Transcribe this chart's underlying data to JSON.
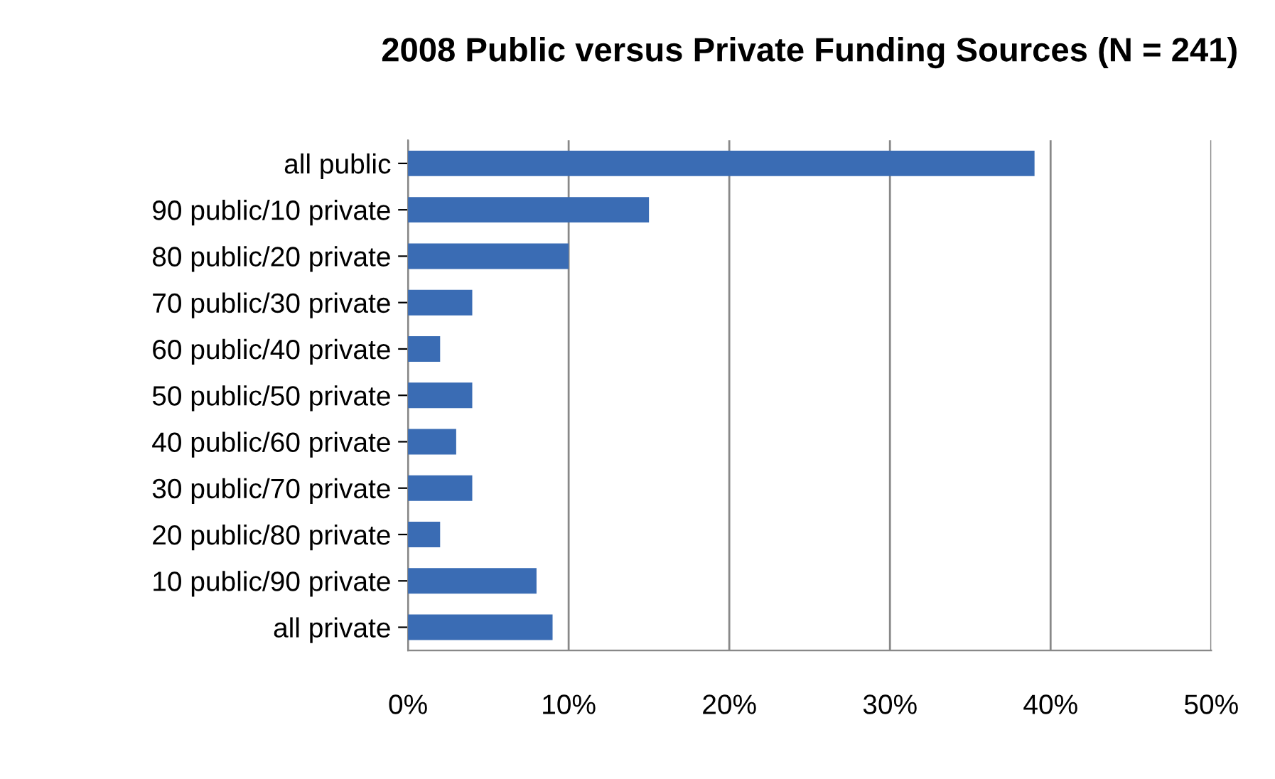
{
  "chart_data": {
    "type": "bar",
    "orientation": "horizontal",
    "title": "2008 Public versus Private Funding Sources (N = 241)",
    "categories": [
      "all public",
      "90 public/10 private",
      "80 public/20 private",
      "70 public/30 private",
      "60 public/40 private",
      "50 public/50 private",
      "40 public/60 private",
      "30 public/70 private",
      "20 public/80 private",
      "10 public/90 private",
      "all private"
    ],
    "values": [
      39,
      15,
      10,
      4,
      2,
      4,
      3,
      4,
      2,
      8,
      9
    ],
    "color": "#3a6cb4",
    "xlim": [
      0,
      50
    ],
    "xticks": [
      {
        "value": 0,
        "label": "0%"
      },
      {
        "value": 10,
        "label": "10%"
      },
      {
        "value": 20,
        "label": "20%"
      },
      {
        "value": 30,
        "label": "30%"
      },
      {
        "value": 40,
        "label": "40%"
      },
      {
        "value": 50,
        "label": "50%"
      }
    ],
    "grid": "x"
  }
}
